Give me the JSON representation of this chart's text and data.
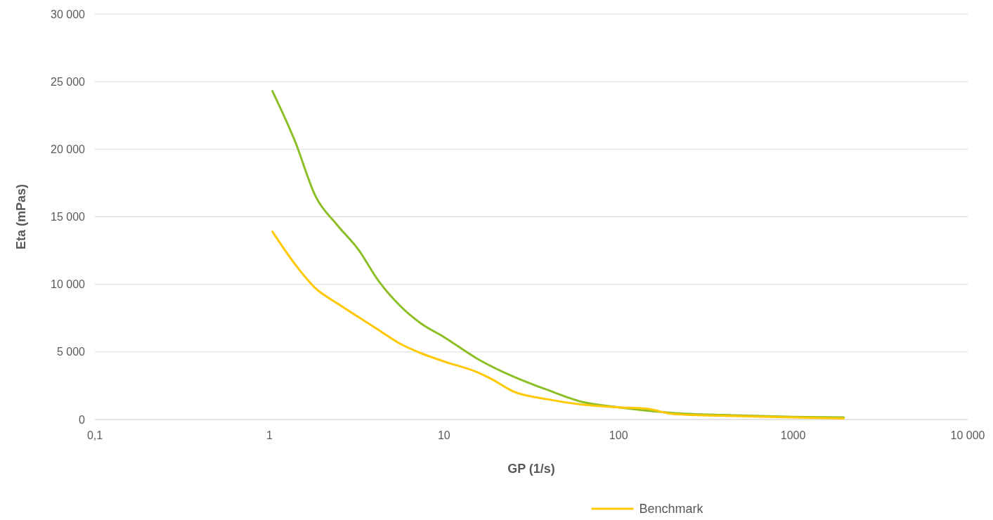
{
  "chart_data": {
    "type": "line",
    "xlabel": "GP (1/s)",
    "ylabel": "Eta (mPas)",
    "log": "x",
    "grid": "y",
    "legend": "bottom",
    "line_style": "solid",
    "marker": "none",
    "xlim": [
      0.1,
      10000
    ],
    "xticks": [
      {
        "value": 0.1,
        "label": "0,1"
      },
      1,
      10,
      100,
      1000,
      {
        "value": 10000,
        "label": "10 000"
      }
    ],
    "ylim": [
      0,
      30000
    ],
    "yticks": [
      0,
      {
        "value": 5000,
        "label": "5 000"
      },
      {
        "value": 10000,
        "label": "10 000"
      },
      {
        "value": 15000,
        "label": "15 000"
      },
      {
        "value": 20000,
        "label": "20 000"
      },
      {
        "value": 25000,
        "label": "25 000"
      },
      {
        "value": 30000,
        "label": "30 000"
      }
    ],
    "x": [
      1.04,
      1.4,
      1.84,
      2.44,
      3.22,
      4.25,
      5.62,
      7.4,
      10,
      15.5,
      24.7,
      39,
      62,
      100,
      200,
      500,
      1000,
      1950
    ],
    "series": [
      {
        "color": "#8cbf26",
        "values": [
          24300,
          20600,
          16500,
          14400,
          12600,
          10200,
          8400,
          7100,
          6100,
          4500,
          3200,
          2200,
          1300,
          900,
          500,
          300,
          200,
          150
        ]
      },
      {
        "name": "Benchmark",
        "color": "#ffc800",
        "x": [
          1.04,
          1.4,
          1.84,
          2.44,
          3.22,
          4.25,
          5.62,
          7.4,
          10,
          15.5,
          18.7,
          24.7,
          39,
          62,
          100,
          144,
          208,
          480,
          1000,
          1950
        ],
        "values": [
          13900,
          11500,
          9700,
          8600,
          7600,
          6600,
          5600,
          4900,
          4300,
          3500,
          3000,
          2100,
          1500,
          1100,
          900,
          800,
          400,
          250,
          150,
          80
        ]
      }
    ]
  }
}
